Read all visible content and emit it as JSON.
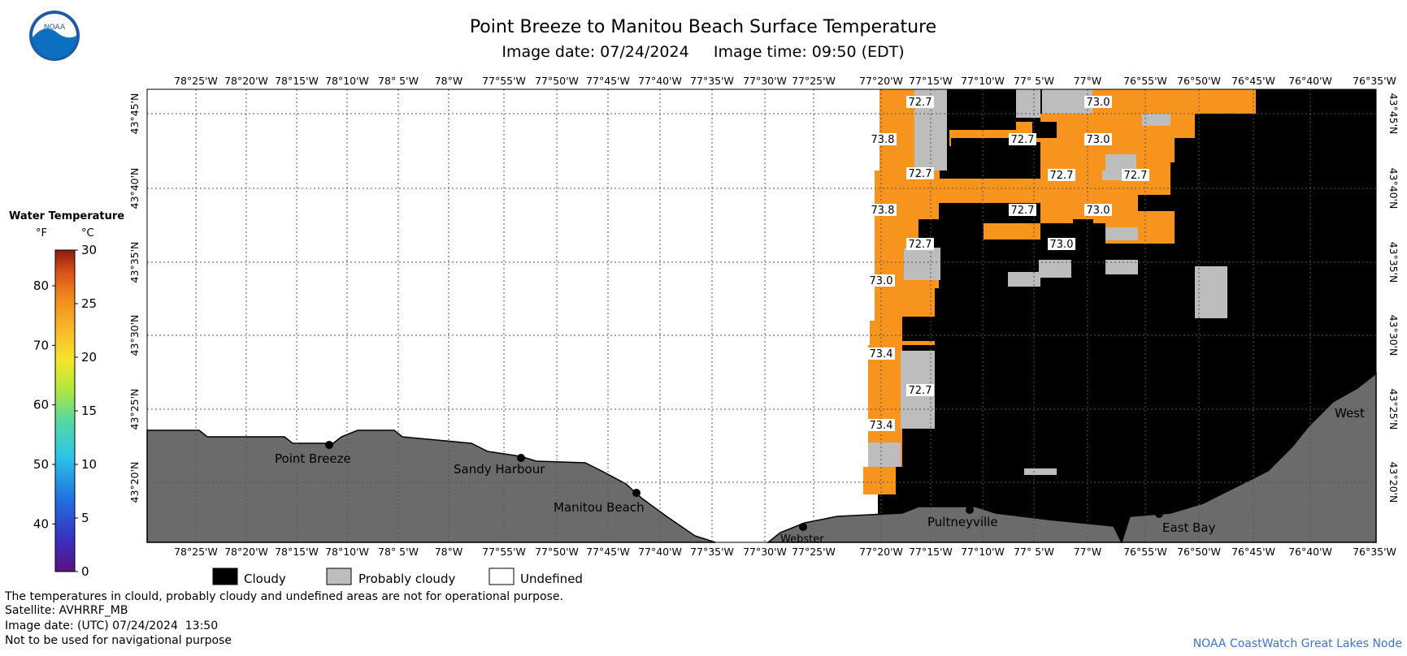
{
  "header": {
    "title": "Point Breeze to Manitou Beach Surface Temperature",
    "subtitle": "Image date: 07/24/2024     Image time: 09:50 (EDT)",
    "logo_text": "NOAA"
  },
  "axes": {
    "lon_labels": [
      "78°25'W",
      "78°20'W",
      "78°15'W",
      "78°10'W",
      "78° 5'W",
      "78°W",
      "77°55'W",
      "77°50'W",
      "77°45'W",
      "77°40'W",
      "77°35'W",
      "77°30'W",
      "77°25'W",
      "77°20'W",
      "77°15'W",
      "77°10'W",
      "77° 5'W",
      "77°W",
      "76°55'W",
      "76°50'W",
      "76°45'W",
      "76°40'W",
      "76°35'W"
    ],
    "lat_labels": [
      "43°45'N",
      "43°40'N",
      "43°35'N",
      "43°30'N",
      "43°25'N",
      "43°20'N"
    ]
  },
  "legend": {
    "title": "Water Temperature",
    "unit_f": "°F",
    "unit_c": "°C",
    "f_ticks": [
      "80",
      "70",
      "60",
      "50",
      "40"
    ],
    "c_ticks": [
      "30",
      "25",
      "20",
      "15",
      "10",
      "5",
      "0"
    ],
    "categories": [
      {
        "label": "Cloudy",
        "color": "#000000"
      },
      {
        "label": "Probably cloudy",
        "color": "#bdbdbd"
      },
      {
        "label": "Undefined",
        "color": "#ffffff"
      }
    ]
  },
  "places": [
    "Point Breeze",
    "Sandy Harbour",
    "Manitou Beach",
    "Webster",
    "Pultneyville",
    "East Bay",
    "West"
  ],
  "temperature_labels": [
    "72.7",
    "73.8",
    "72.7",
    "73.8",
    "72.7",
    "73.0",
    "73.4",
    "72.7",
    "73.4",
    "72.7",
    "73.0",
    "72.7",
    "73.0",
    "72.7",
    "72.7",
    "73.0",
    "73.0"
  ],
  "colors": {
    "water_orange": "#f7941d",
    "land": "#6b6b6b",
    "cloudy": "#000000",
    "probably_cloudy": "#bdbdbd"
  },
  "footer": {
    "note": "The temperatures in clould, probably cloudy and undefined areas are not for operational purpose.",
    "satellite": "Satellite: AVHRRF_MB",
    "image_date_utc": "Image date: (UTC) 07/24/2024  13:50",
    "nav_warning": "Not to be used for navigational purpose",
    "credit": "NOAA CoastWatch Great Lakes Node"
  }
}
